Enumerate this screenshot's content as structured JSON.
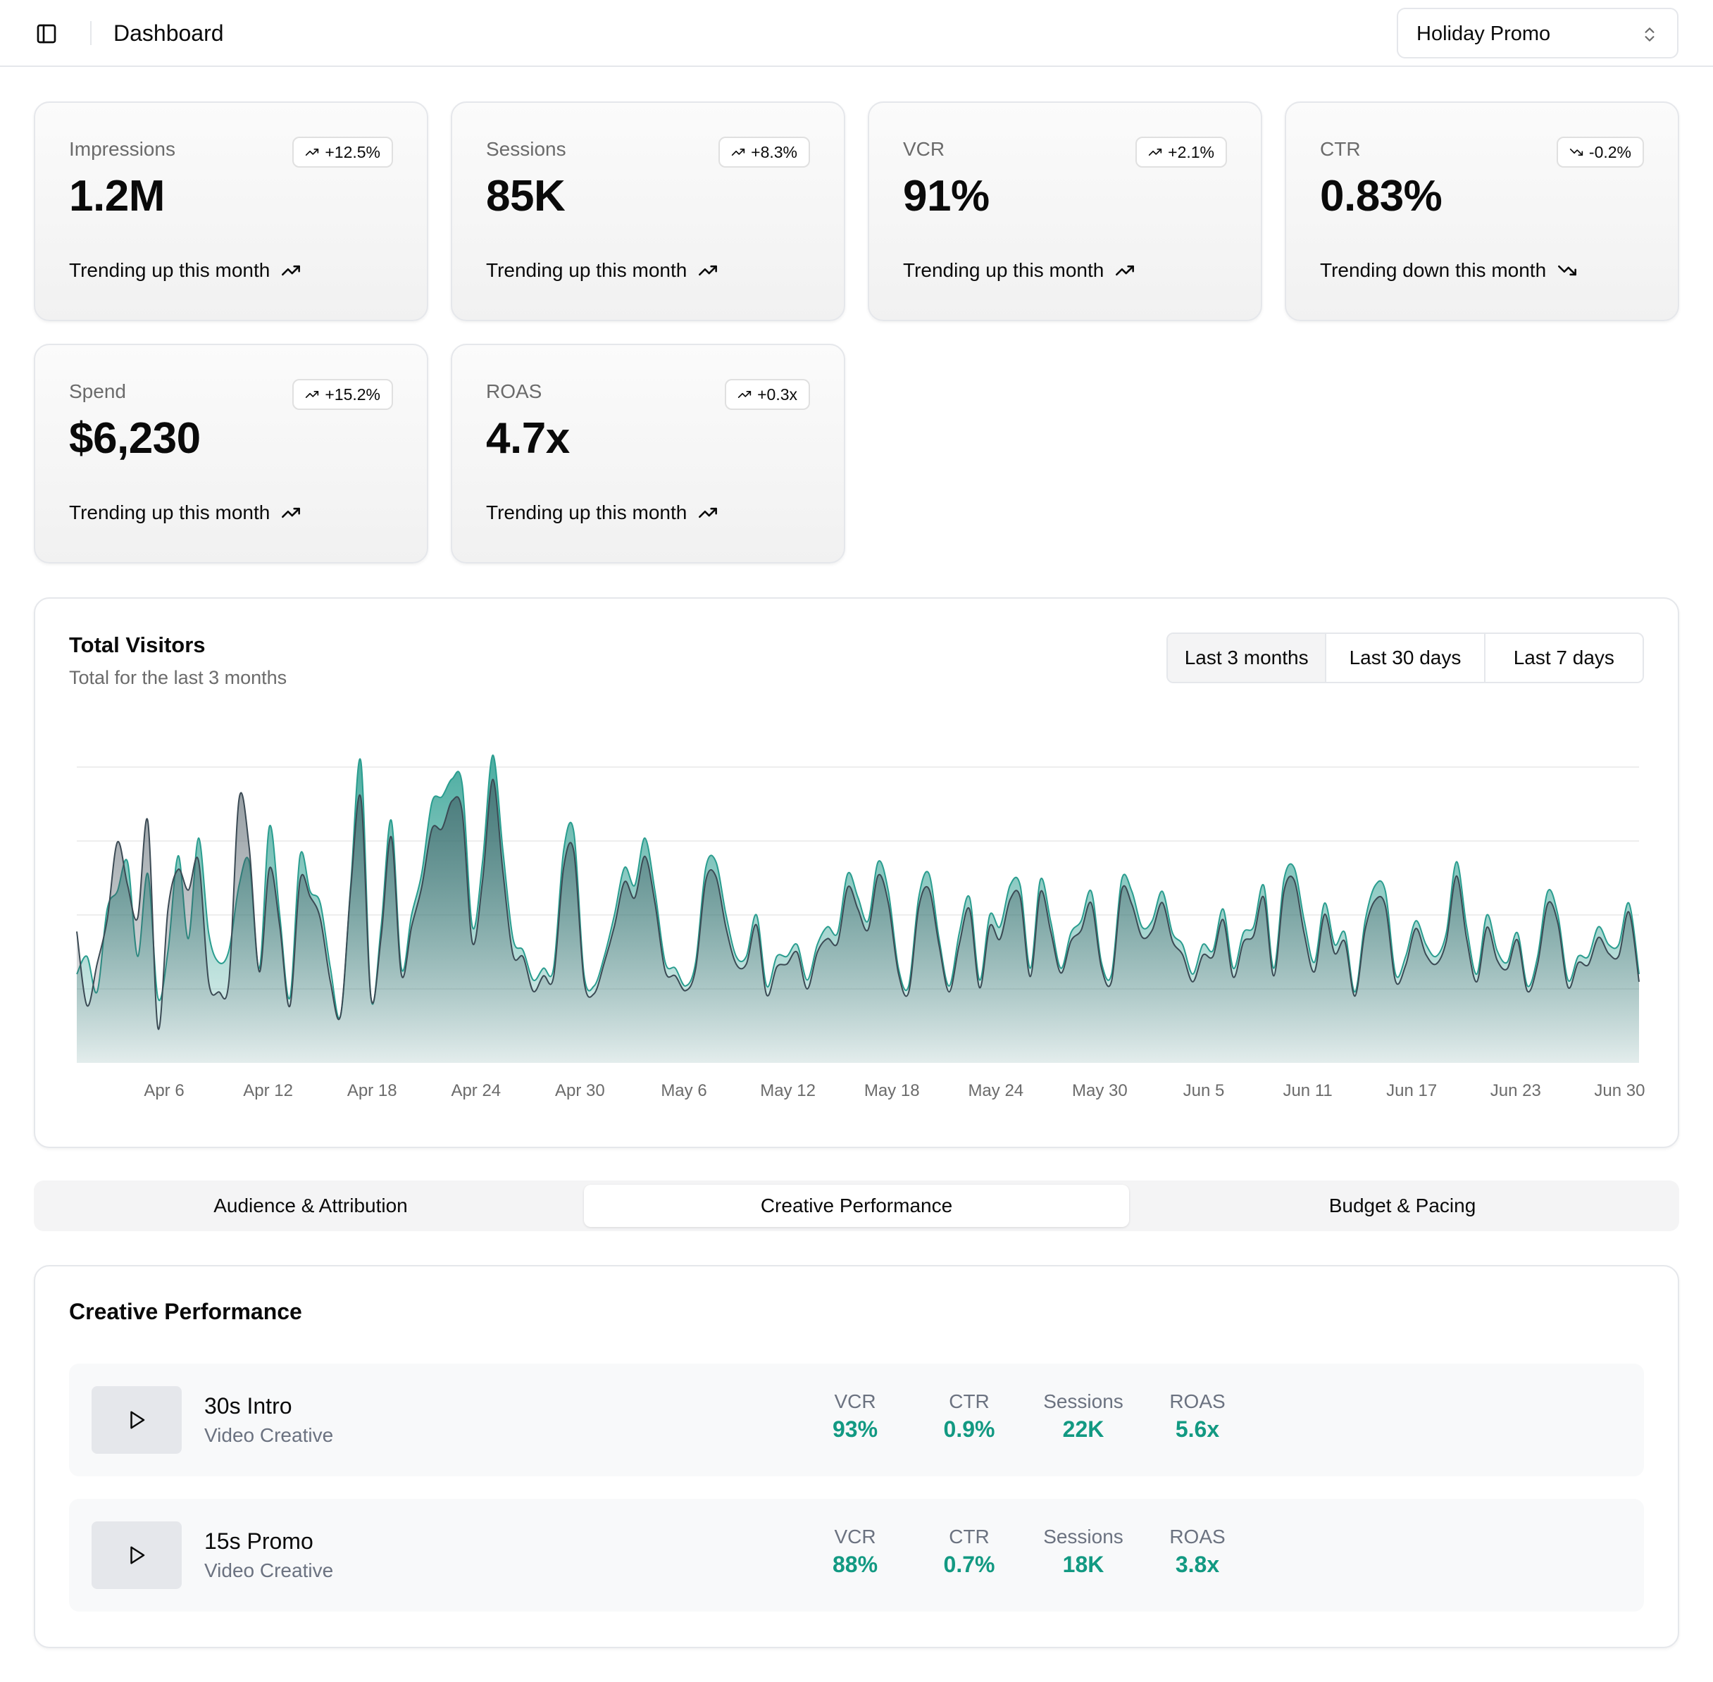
{
  "header": {
    "title": "Dashboard",
    "campaign_select": "Holiday Promo"
  },
  "kpis": [
    {
      "label": "Impressions",
      "value": "1.2M",
      "badge": "+12.5%",
      "footer": "Trending up this month",
      "direction": "up"
    },
    {
      "label": "Sessions",
      "value": "85K",
      "badge": "+8.3%",
      "footer": "Trending up this month",
      "direction": "up"
    },
    {
      "label": "VCR",
      "value": "91%",
      "badge": "+2.1%",
      "footer": "Trending up this month",
      "direction": "up"
    },
    {
      "label": "CTR",
      "value": "0.83%",
      "badge": "-0.2%",
      "footer": "Trending down this month",
      "direction": "down"
    },
    {
      "label": "Spend",
      "value": "$6,230",
      "badge": "+15.2%",
      "footer": "Trending up this month",
      "direction": "up"
    },
    {
      "label": "ROAS",
      "value": "4.7x",
      "badge": "+0.3x",
      "footer": "Trending up this month",
      "direction": "up"
    }
  ],
  "visitors": {
    "title": "Total Visitors",
    "subtitle": "Total for the last 3 months",
    "ranges": [
      "Last 3 months",
      "Last 30 days",
      "Last 7 days"
    ],
    "active_range": "Last 3 months"
  },
  "chart_data": {
    "type": "area",
    "title": "Total Visitors",
    "xlabel": "",
    "ylabel": "",
    "x_ticks": [
      "Apr 6",
      "Apr 12",
      "Apr 18",
      "Apr 24",
      "Apr 30",
      "May 6",
      "May 12",
      "May 18",
      "May 24",
      "May 30",
      "Jun 5",
      "Jun 11",
      "Jun 17",
      "Jun 23",
      "Jun 30"
    ],
    "x_start": "2024-04-01",
    "colors": {
      "upper": "#2a9d8f",
      "lower": "#3b4a54"
    },
    "grid": true,
    "ylim": [
      0,
      500
    ],
    "series": [
      {
        "values": [
          222,
          97,
          167,
          242,
          373,
          301,
          245,
          409,
          59,
          261,
          327,
          292,
          342,
          137,
          120,
          138,
          446,
          364,
          154,
          329,
          232,
          96,
          308,
          281,
          244,
          137,
          80,
          294,
          448,
          110,
          213,
          382,
          149,
          230,
          297,
          395,
          396,
          443,
          423,
          203,
          308,
          479,
          324,
          183,
          179,
          121,
          147,
          145,
          331,
          357,
          139,
          117,
          169,
          231,
          306,
          279,
          349,
          270,
          155,
          147,
          122,
          159,
          308,
          315,
          228,
          167,
          167,
          233,
          115,
          162,
          167,
          187,
          125,
          187,
          210,
          203,
          297,
          260,
          225,
          317,
          270,
          151,
          119,
          263,
          294,
          199,
          120,
          201,
          260,
          127,
          231,
          209,
          276,
          280,
          146,
          289,
          223,
          152,
          206,
          224,
          270,
          161,
          138,
          292,
          268,
          213,
          224,
          271,
          206,
          183,
          137,
          182,
          180,
          242,
          145,
          204,
          215,
          280,
          147,
          290,
          309,
          218,
          154,
          251,
          185,
          205,
          113,
          225,
          275,
          265,
          138,
          165,
          227,
          183,
          167,
          206,
          316,
          210,
          137,
          229,
          174,
          159,
          208,
          121,
          167,
          269,
          236,
          128,
          169,
          166,
          212,
          185,
          181,
          255,
          137
        ]
      },
      {
        "values": [
          150,
          180,
          120,
          260,
          290,
          340,
          180,
          320,
          110,
          190,
          350,
          210,
          380,
          220,
          170,
          190,
          300,
          340,
          160,
          400,
          250,
          110,
          350,
          290,
          270,
          160,
          80,
          300,
          510,
          110,
          230,
          410,
          160,
          250,
          320,
          440,
          450,
          480,
          470,
          230,
          340,
          520,
          360,
          210,
          190,
          140,
          160,
          160,
          360,
          390,
          150,
          130,
          180,
          250,
          330,
          300,
          380,
          290,
          170,
          160,
          130,
          170,
          330,
          340,
          250,
          180,
          180,
          250,
          130,
          180,
          180,
          200,
          140,
          200,
          230,
          220,
          320,
          280,
          240,
          340,
          290,
          160,
          130,
          280,
          320,
          210,
          130,
          220,
          280,
          140,
          250,
          230,
          300,
          300,
          160,
          310,
          240,
          160,
          220,
          240,
          290,
          170,
          150,
          310,
          290,
          230,
          240,
          290,
          220,
          200,
          150,
          200,
          190,
          260,
          160,
          220,
          230,
          300,
          160,
          310,
          330,
          240,
          170,
          270,
          200,
          220,
          120,
          240,
          300,
          290,
          150,
          180,
          240,
          200,
          180,
          220,
          340,
          230,
          150,
          250,
          190,
          170,
          220,
          130,
          180,
          290,
          250,
          140,
          180,
          180,
          230,
          200,
          200,
          270,
          150
        ]
      }
    ]
  },
  "tabs": {
    "items": [
      "Audience & Attribution",
      "Creative Performance",
      "Budget & Pacing"
    ],
    "active": "Creative Performance"
  },
  "creative": {
    "title": "Creative Performance",
    "rows": [
      {
        "name": "30s Intro",
        "type": "Video Creative",
        "metrics": [
          {
            "label": "VCR",
            "value": "93%"
          },
          {
            "label": "CTR",
            "value": "0.9%"
          },
          {
            "label": "Sessions",
            "value": "22K"
          },
          {
            "label": "ROAS",
            "value": "5.6x"
          }
        ]
      },
      {
        "name": "15s Promo",
        "type": "Video Creative",
        "metrics": [
          {
            "label": "VCR",
            "value": "88%"
          },
          {
            "label": "CTR",
            "value": "0.7%"
          },
          {
            "label": "Sessions",
            "value": "18K"
          },
          {
            "label": "ROAS",
            "value": "3.8x"
          }
        ]
      }
    ]
  },
  "icons": {
    "sidebar_toggle": "sidebar-panel-icon",
    "select_chevron": "chevron-up-down-icon",
    "trend_up": "trending-up-icon",
    "trend_down": "trending-down-icon",
    "play": "play-icon"
  },
  "colors": {
    "accent": "#129982",
    "muted_text": "#6b7280",
    "border": "#e5e7eb"
  }
}
